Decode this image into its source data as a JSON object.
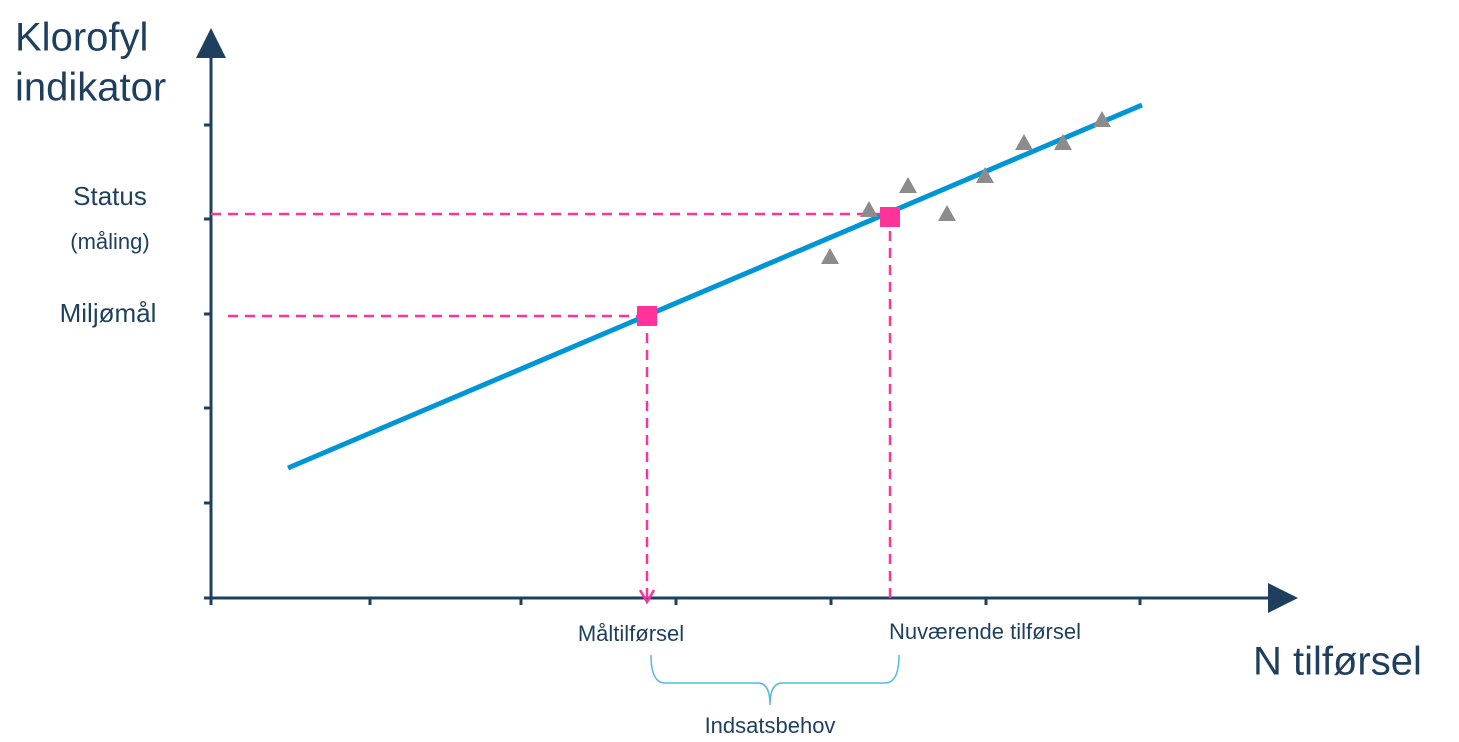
{
  "y_axis": {
    "label_lines": [
      "Klorofyl",
      "indikator"
    ],
    "levels": {
      "status": "Status",
      "status_note": "(måling)",
      "target": "Miljømål"
    }
  },
  "x_axis": {
    "label": "N tilførsel",
    "target": "Måltilførsel",
    "current": "Nuværende tilførsel",
    "gap": "Indsatsbehov"
  }
}
